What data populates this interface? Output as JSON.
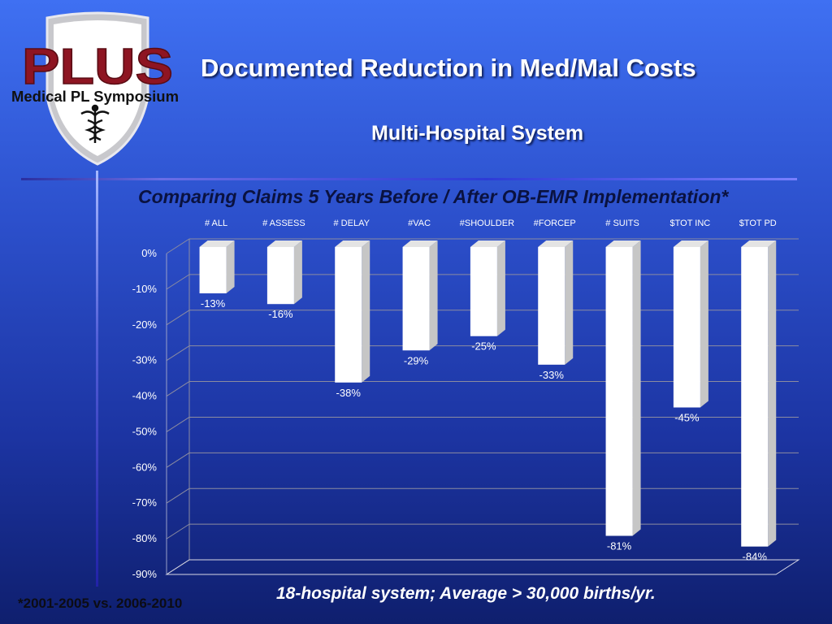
{
  "logo": {
    "brand": "PLUS",
    "name": "Medical PL Symposium"
  },
  "slide": {
    "title": "Documented Reduction in Med/Mal Costs",
    "subtitle": "Multi-Hospital System",
    "footer": "18-hospital system; Average > 30,000 births/yr.",
    "footnote": "*2001-2005 vs. 2006-2010"
  },
  "colors": {
    "background_top": "#3f70f2",
    "background_bottom": "#0f1f6e",
    "bar_face": "#ffffff",
    "bar_side": "#c6c6c6",
    "gridline": "#8c8ca0",
    "axis_text": "#ffffff"
  },
  "chart_data": {
    "type": "bar",
    "title": "Comparing Claims 5 Years Before / After OB-EMR Implementation*",
    "categories": [
      "# ALL",
      "# ASSESS",
      "# DELAY",
      "#VAC",
      "#SHOULDER",
      "#FORCEP",
      "# SUITS",
      "$TOT INC",
      "$TOT PD"
    ],
    "values": [
      -13,
      -16,
      -38,
      -29,
      -25,
      -33,
      -81,
      -45,
      -84
    ],
    "data_labels": [
      "-13%",
      "-16%",
      "-38%",
      "-29%",
      "-25%",
      "-33%",
      "-81%",
      "-45%",
      "-84%"
    ],
    "yticks": [
      "0%",
      "-10%",
      "-20%",
      "-30%",
      "-40%",
      "-50%",
      "-60%",
      "-70%",
      "-80%",
      "-90%"
    ],
    "ylim": [
      -90,
      0
    ],
    "category_axis_position": "top",
    "grid": true,
    "style": "3d-column"
  }
}
